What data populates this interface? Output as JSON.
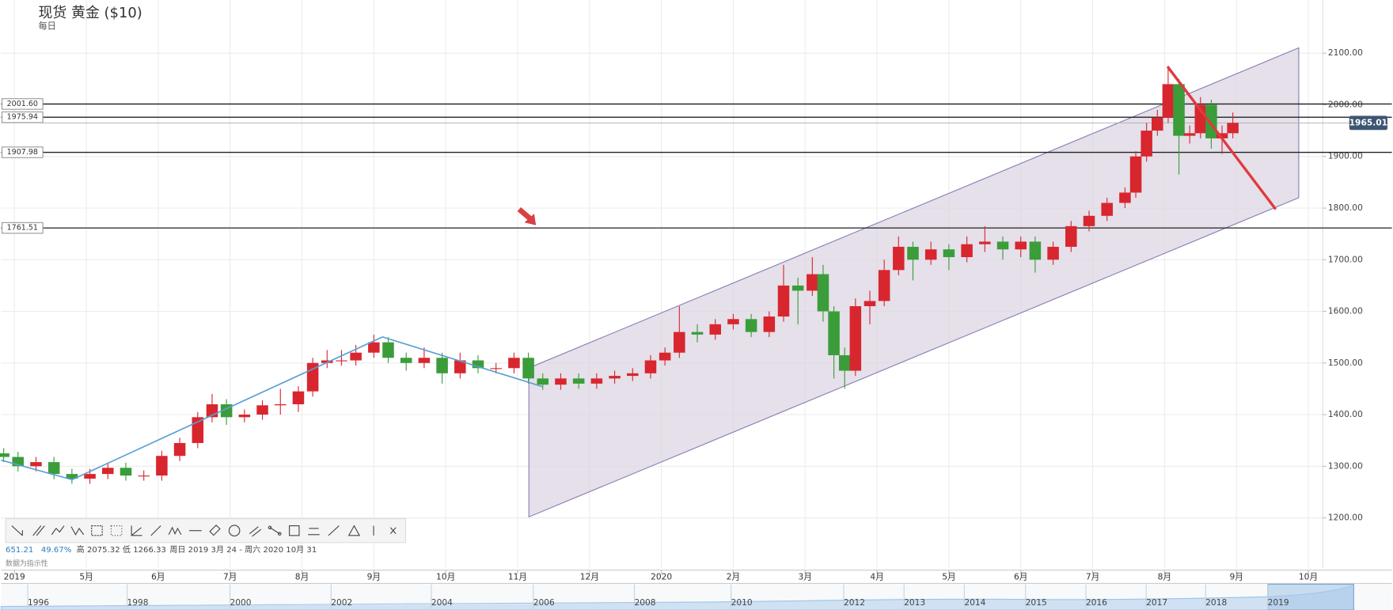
{
  "header": {
    "title": "现货 黄金 ($10)",
    "interval": "每日"
  },
  "chart_data": {
    "type": "candlestick",
    "x": [
      3.85,
      4.05,
      4.3,
      4.55,
      4.8,
      5.05,
      5.3,
      5.55,
      5.8,
      6.05,
      6.3,
      6.55,
      6.75,
      6.95,
      7.2,
      7.45,
      7.7,
      7.95,
      8.15,
      8.35,
      8.55,
      8.75,
      9.0,
      9.2,
      9.45,
      9.7,
      9.95,
      10.2,
      10.45,
      10.7,
      10.95,
      11.15,
      11.35,
      11.6,
      11.85,
      12.1,
      12.35,
      12.6,
      12.85,
      13.05,
      13.25,
      13.5,
      13.75,
      14.0,
      14.25,
      14.5,
      14.7,
      14.9,
      15.1,
      15.25,
      15.4,
      15.55,
      15.7,
      15.9,
      16.1,
      16.3,
      16.5,
      16.75,
      17.0,
      17.25,
      17.5,
      17.75,
      18.0,
      18.2,
      18.45,
      18.7,
      18.95,
      19.2,
      19.45,
      19.6,
      19.75,
      19.9,
      20.05,
      20.2,
      20.35,
      20.5,
      20.65,
      20.8,
      20.95
    ],
    "open": [
      1325,
      1318,
      1300,
      1308,
      1285,
      1276,
      1285,
      1297,
      1282,
      1282,
      1320,
      1345,
      1395,
      1420,
      1395,
      1400,
      1418,
      1420,
      1445,
      1500,
      1505,
      1505,
      1520,
      1540,
      1510,
      1500,
      1510,
      1480,
      1505,
      1490,
      1490,
      1510,
      1470,
      1458,
      1470,
      1460,
      1470,
      1475,
      1480,
      1505,
      1520,
      1560,
      1555,
      1575,
      1585,
      1560,
      1590,
      1650,
      1640,
      1672,
      1600,
      1515,
      1485,
      1610,
      1620,
      1680,
      1725,
      1700,
      1720,
      1705,
      1730,
      1735,
      1720,
      1735,
      1700,
      1725,
      1765,
      1785,
      1810,
      1830,
      1900,
      1950,
      1975,
      2040,
      1940,
      1945,
      2000,
      1935,
      1945
    ],
    "high": [
      1335,
      1328,
      1318,
      1318,
      1295,
      1295,
      1307,
      1307,
      1292,
      1330,
      1355,
      1405,
      1440,
      1430,
      1410,
      1428,
      1450,
      1455,
      1510,
      1525,
      1525,
      1535,
      1555,
      1550,
      1520,
      1530,
      1520,
      1520,
      1515,
      1500,
      1520,
      1520,
      1480,
      1480,
      1480,
      1480,
      1485,
      1490,
      1515,
      1530,
      1610,
      1575,
      1585,
      1595,
      1595,
      1600,
      1690,
      1665,
      1705,
      1690,
      1610,
      1530,
      1625,
      1640,
      1700,
      1745,
      1735,
      1735,
      1730,
      1745,
      1765,
      1745,
      1745,
      1745,
      1735,
      1775,
      1795,
      1820,
      1840,
      1910,
      1965,
      1990,
      2075,
      2050,
      1960,
      2015,
      2010,
      1960,
      1985
    ],
    "low": [
      1308,
      1290,
      1290,
      1275,
      1266,
      1266,
      1275,
      1272,
      1272,
      1272,
      1310,
      1335,
      1385,
      1380,
      1385,
      1390,
      1400,
      1405,
      1435,
      1490,
      1495,
      1495,
      1510,
      1500,
      1485,
      1490,
      1460,
      1470,
      1480,
      1480,
      1480,
      1460,
      1448,
      1448,
      1450,
      1450,
      1460,
      1465,
      1470,
      1495,
      1510,
      1540,
      1545,
      1565,
      1550,
      1550,
      1580,
      1575,
      1630,
      1580,
      1470,
      1450,
      1475,
      1575,
      1610,
      1670,
      1660,
      1690,
      1680,
      1695,
      1715,
      1700,
      1705,
      1675,
      1690,
      1715,
      1755,
      1775,
      1800,
      1820,
      1890,
      1940,
      1965,
      1865,
      1925,
      1935,
      1915,
      1905,
      1935
    ],
    "close": [
      1318,
      1300,
      1308,
      1285,
      1276,
      1285,
      1297,
      1282,
      1282,
      1320,
      1345,
      1395,
      1420,
      1395,
      1400,
      1418,
      1420,
      1445,
      1500,
      1505,
      1505,
      1520,
      1540,
      1510,
      1500,
      1510,
      1480,
      1505,
      1490,
      1490,
      1510,
      1470,
      1458,
      1470,
      1460,
      1470,
      1475,
      1480,
      1505,
      1520,
      1560,
      1555,
      1575,
      1585,
      1560,
      1590,
      1650,
      1640,
      1672,
      1600,
      1515,
      1485,
      1610,
      1620,
      1680,
      1725,
      1700,
      1720,
      1705,
      1730,
      1735,
      1720,
      1735,
      1700,
      1725,
      1765,
      1785,
      1810,
      1830,
      1900,
      1950,
      1975,
      2040,
      1940,
      1945,
      2000,
      1935,
      1945,
      1965
    ],
    "up_color": "#d8262f",
    "down_color": "#3a9d3a",
    "xlim": [
      3.815,
      22.2
    ],
    "xticks": [
      {
        "value": 4,
        "label": "2019"
      },
      {
        "value": 5,
        "label": "5月"
      },
      {
        "value": 6,
        "label": "6月"
      },
      {
        "value": 7,
        "label": "7月"
      },
      {
        "value": 8,
        "label": "8月"
      },
      {
        "value": 9,
        "label": "9月"
      },
      {
        "value": 10,
        "label": "10月"
      },
      {
        "value": 11,
        "label": "11月"
      },
      {
        "value": 12,
        "label": "12月"
      },
      {
        "value": 13,
        "label": "2020"
      },
      {
        "value": 14,
        "label": "2月"
      },
      {
        "value": 15,
        "label": "3月"
      },
      {
        "value": 16,
        "label": "4月"
      },
      {
        "value": 17,
        "label": "5月"
      },
      {
        "value": 18,
        "label": "6月"
      },
      {
        "value": 19,
        "label": "7月"
      },
      {
        "value": 20,
        "label": "8月"
      },
      {
        "value": 21,
        "label": "9月"
      },
      {
        "value": 22,
        "label": "10月"
      }
    ],
    "ylim": [
      1104,
      2203
    ],
    "yticks": [
      {
        "value": 1200,
        "label": "1200.00"
      },
      {
        "value": 1300,
        "label": "1300.00"
      },
      {
        "value": 1400,
        "label": "1400.00"
      },
      {
        "value": 1500,
        "label": "1500.00"
      },
      {
        "value": 1600,
        "label": "1600.00"
      },
      {
        "value": 1700,
        "label": "1700.00"
      },
      {
        "value": 1800,
        "label": "1800.00"
      },
      {
        "value": 1900,
        "label": "1900.00"
      },
      {
        "value": 2000,
        "label": "2000.00"
      },
      {
        "value": 2100,
        "label": "2100.00"
      }
    ],
    "grid": true,
    "levels": [
      {
        "value": 2001.6,
        "label": "2001.60"
      },
      {
        "value": 1975.94,
        "label": "1975.94"
      },
      {
        "value": 1907.98,
        "label": "1907.98"
      },
      {
        "value": 1761.51,
        "label": "1761.51"
      }
    ],
    "last_price": {
      "value": 1965.01,
      "label": "1965.01"
    }
  },
  "info": {
    "change": "651.21",
    "change_percent": "49.67%",
    "high": "高 2075.32",
    "low": "低 1266.33",
    "range": "周日 2019 3月 24 - 周六 2020 10月 31",
    "note": "数据为指示性"
  },
  "navigator": {
    "years": [
      "1996",
      "1998",
      "2000",
      "2002",
      "2004",
      "2006",
      "2008",
      "2010",
      "2012",
      "2013",
      "2014",
      "2015",
      "2016",
      "2017",
      "2018",
      "2019"
    ]
  }
}
